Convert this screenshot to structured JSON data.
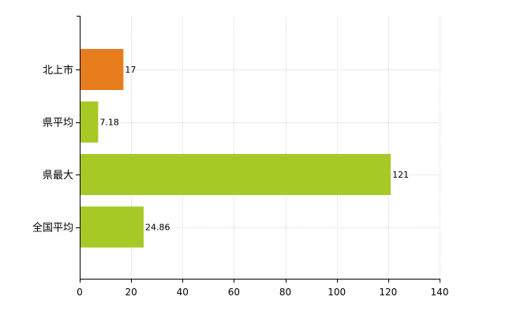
{
  "chart_data": {
    "type": "bar",
    "orientation": "horizontal",
    "categories": [
      "北上市",
      "県平均",
      "県最大",
      "全国平均"
    ],
    "values": [
      17,
      7.18,
      121,
      24.86
    ],
    "value_labels": [
      "17",
      "7.18",
      "121",
      "24.86"
    ],
    "bar_colors": [
      "#e87d1e",
      "#a6c926",
      "#a6c926",
      "#a6c926"
    ],
    "xlim": [
      0,
      140
    ],
    "xticks": [
      0,
      20,
      40,
      60,
      80,
      100,
      120,
      140
    ],
    "grid": true,
    "grid_color": "#d6d6d6",
    "title": "",
    "xlabel": "",
    "ylabel": ""
  }
}
